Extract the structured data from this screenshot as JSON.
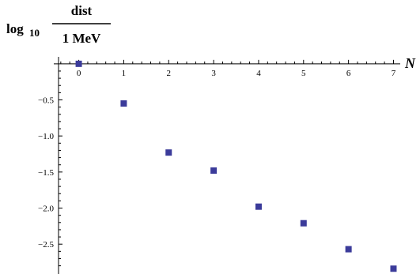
{
  "chart_data": {
    "type": "scatter",
    "xlabel": "N",
    "ylabel": {
      "log": "log",
      "subscript": "10",
      "numerator": "dist",
      "denominator": "1 MeV"
    },
    "x": [
      0,
      1,
      2,
      3,
      4,
      5,
      6,
      7
    ],
    "y": [
      0.0,
      -0.55,
      -1.23,
      -1.48,
      -1.98,
      -2.21,
      -2.57,
      -2.84
    ],
    "xlim": [
      -0.45,
      7.15
    ],
    "ylim": [
      -2.87,
      0.02
    ],
    "xticks": [
      0,
      1,
      2,
      3,
      4,
      5,
      6,
      7
    ],
    "xtick_labels": [
      "0",
      "1",
      "2",
      "3",
      "4",
      "5",
      "6",
      "7"
    ],
    "yticks": [
      -0.5,
      -1.0,
      -1.5,
      -2.0,
      -2.5
    ],
    "ytick_labels": [
      "−0.5",
      "−1.0",
      "−1.5",
      "−2.0",
      "−2.5"
    ],
    "marker_color": "#3b3b9a",
    "grid": false
  }
}
